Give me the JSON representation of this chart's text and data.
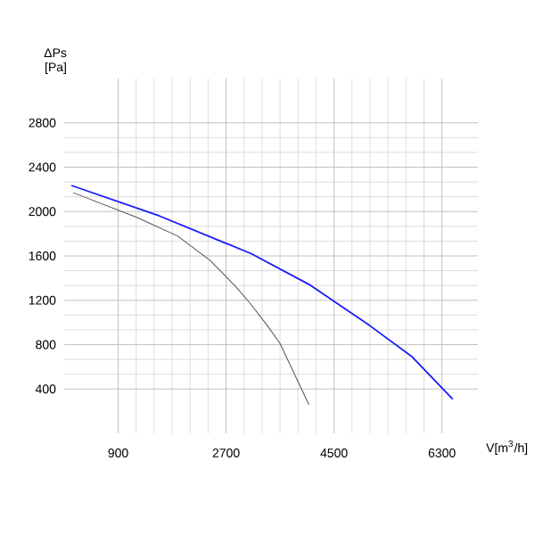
{
  "chart_data": {
    "type": "line",
    "xlabel": "V[m$^{3}$/h]",
    "ylabel": "ΔPs [Pa]",
    "xlim": [
      0,
      6900
    ],
    "ylim": [
      0,
      3200
    ],
    "xticks": [
      900,
      2700,
      4500,
      6300
    ],
    "yticks": [
      400,
      800,
      1200,
      1600,
      2000,
      2400,
      2800
    ],
    "grid": true,
    "series": [
      {
        "color": "#555555",
        "x": [
          150,
          1200,
          1890,
          2430,
          2850,
          3090,
          3390,
          3600,
          4080
        ],
        "values": [
          2170,
          1950,
          1780,
          1560,
          1330,
          1180,
          970,
          810,
          260
        ]
      },
      {
        "color": "#1a1aff",
        "x": [
          120,
          1590,
          3120,
          4080,
          5100,
          5790,
          6480
        ],
        "values": [
          2235,
          1960,
          1620,
          1344,
          970,
          696,
          308
        ]
      }
    ]
  }
}
